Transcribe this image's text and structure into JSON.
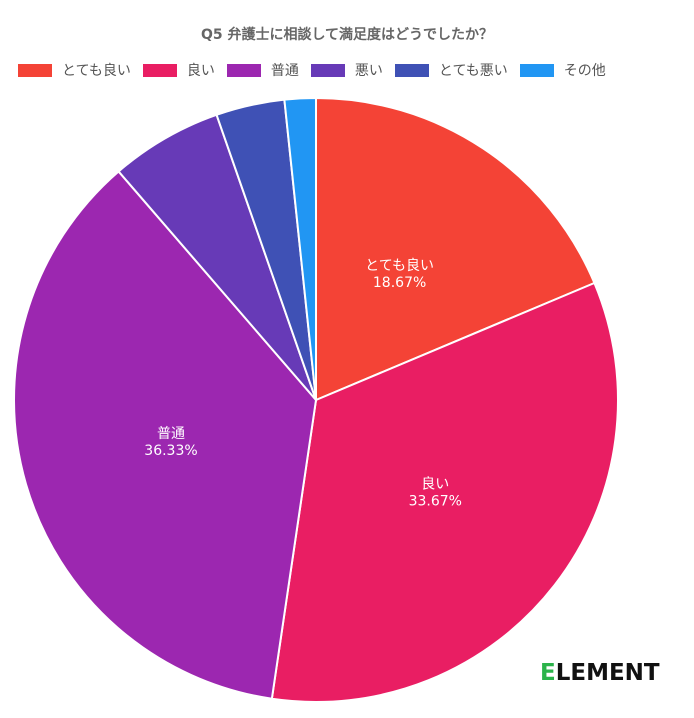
{
  "chart_data": {
    "type": "pie",
    "title": "Q5 弁護士に相談して満足度はどうでしたか？",
    "legend_position": "top-left",
    "categories": [
      "とても良い",
      "良い",
      "普通",
      "悪い",
      "とても悪い",
      "その他"
    ],
    "values": [
      18.67,
      33.67,
      36.33,
      6.0,
      3.67,
      1.67
    ],
    "colors": [
      "#f44336",
      "#e91e63",
      "#9c27b0",
      "#673ab7",
      "#3f51b5",
      "#2196f3"
    ],
    "data_labels": [
      {
        "category": "とても良い",
        "value": "18.67%"
      },
      {
        "category": "良い",
        "value": "33.67%"
      },
      {
        "category": "普通",
        "value": "36.33%"
      }
    ]
  },
  "brand": {
    "logo_first": "E",
    "logo_rest": "LEMENT"
  }
}
